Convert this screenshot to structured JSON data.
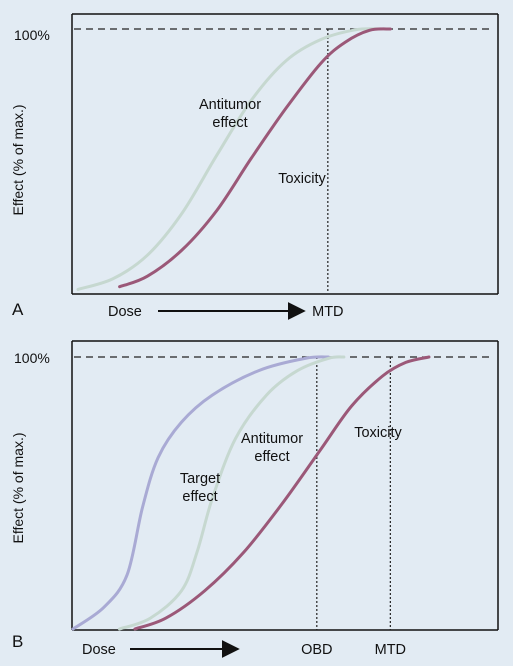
{
  "chart_data": [
    {
      "panel": "A",
      "type": "line",
      "ylabel": "Effect (% of max.)",
      "ytick_label": "100%",
      "xlabel": "Dose",
      "ylim": [
        0,
        100
      ],
      "xlim": [
        0,
        100
      ],
      "series": [
        {
          "name": "Antitumor effect",
          "name_lines": [
            "Antitumor",
            "effect"
          ],
          "color": "#c6d8d0",
          "x": [
            0,
            10,
            20,
            30,
            40,
            50,
            60,
            70,
            80,
            87
          ],
          "y": [
            1,
            5,
            14,
            30,
            52,
            73,
            88,
            96,
            99.7,
            100
          ]
        },
        {
          "name": "Toxicity",
          "name_lines": [
            "Toxicity"
          ],
          "color": "#9b5878",
          "x": [
            12,
            20,
            30,
            40,
            50,
            60,
            70,
            77,
            84,
            90
          ],
          "y": [
            2,
            6,
            16,
            31,
            51,
            70,
            87,
            95,
            99.5,
            100
          ]
        }
      ],
      "markers": [
        {
          "label": "MTD",
          "x": 72
        }
      ],
      "reference_line": {
        "y": 100,
        "style": "dashed"
      }
    },
    {
      "panel": "B",
      "type": "line",
      "ylabel": "Effect (% of max.)",
      "ytick_label": "100%",
      "xlabel": "Dose",
      "ylim": [
        0,
        100
      ],
      "xlim": [
        0,
        100
      ],
      "series": [
        {
          "name": "Target effect",
          "name_lines": [
            "Target",
            "effect"
          ],
          "color": "#a9aad4",
          "x": [
            0,
            8,
            14,
            18,
            22,
            28,
            36,
            48,
            60,
            66
          ],
          "y": [
            0,
            8,
            20,
            45,
            63,
            76,
            86,
            95,
            99.5,
            100
          ]
        },
        {
          "name": "Antitumor effect",
          "name_lines": [
            "Antitumor",
            "effect"
          ],
          "color": "#c6d8d0",
          "x": [
            12,
            20,
            28,
            32,
            36,
            42,
            50,
            58,
            66,
            70
          ],
          "y": [
            0,
            4,
            14,
            28,
            48,
            70,
            86,
            95,
            99.5,
            100
          ]
        },
        {
          "name": "Toxicity",
          "name_lines": [
            "Toxicity"
          ],
          "color": "#9b5878",
          "x": [
            16,
            24,
            34,
            44,
            54,
            64,
            72,
            80,
            86,
            92
          ],
          "y": [
            0,
            4,
            14,
            28,
            46,
            66,
            82,
            93,
            98,
            100
          ]
        }
      ],
      "markers": [
        {
          "label": "OBD",
          "x": 63
        },
        {
          "label": "MTD",
          "x": 82
        }
      ],
      "reference_line": {
        "y": 100,
        "style": "dashed"
      }
    }
  ]
}
